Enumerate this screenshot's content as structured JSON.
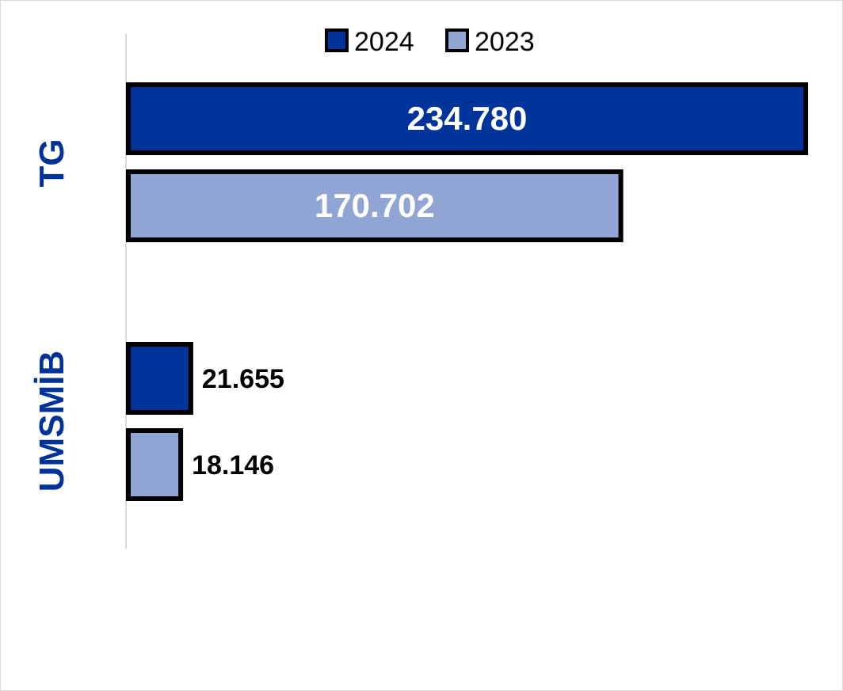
{
  "chart_data": {
    "type": "bar",
    "orientation": "horizontal",
    "categories": [
      "TG",
      "UMSMİB"
    ],
    "series": [
      {
        "name": "2024",
        "values": [
          234780,
          21655
        ],
        "labels": [
          "234.780",
          "21.655"
        ]
      },
      {
        "name": "2023",
        "values": [
          170702,
          18146
        ],
        "labels": [
          "170.702",
          "18.146"
        ]
      }
    ],
    "xlim": [
      0,
      234780
    ],
    "legend_position": "top",
    "grid": false
  },
  "colors": {
    "series_2024": "#00349a",
    "series_2023": "#91a5d4",
    "bar_outline": "#000000",
    "category_label": "#003399",
    "axis_line": "#d9d9d9"
  }
}
